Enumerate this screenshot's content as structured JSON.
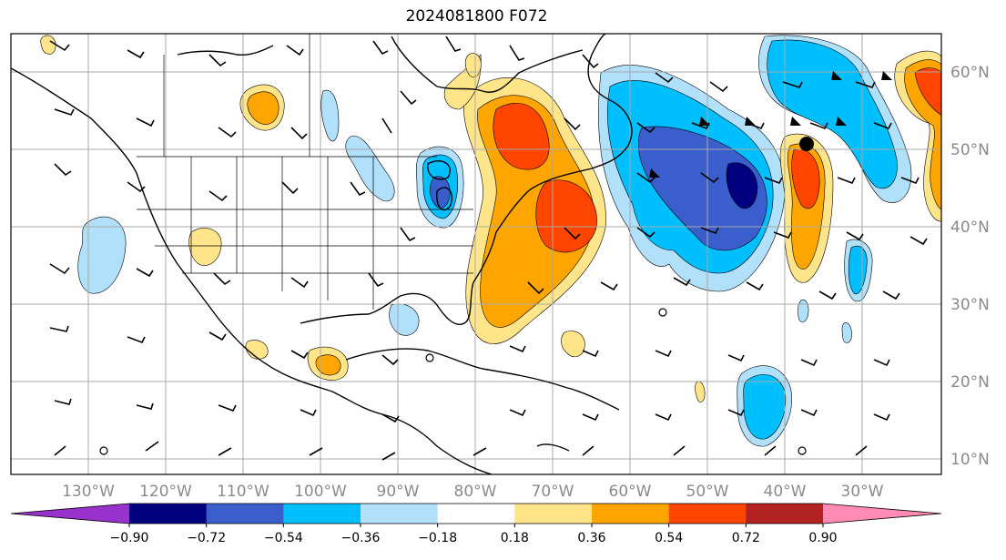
{
  "title": "2024081800 F072",
  "latitude_labels": [
    "10°N",
    "20°N",
    "30°N",
    "40°N",
    "50°N",
    "60°N"
  ],
  "longitude_labels": [
    "130°W",
    "120°W",
    "110°W",
    "100°W",
    "90°W",
    "80°W",
    "70°W",
    "60°W",
    "50°W",
    "40°W",
    "30°W"
  ],
  "colorbar": {
    "tick_labels": [
      "−0.90",
      "−0.72",
      "−0.54",
      "−0.36",
      "−0.18",
      "0.18",
      "0.36",
      "0.54",
      "0.72",
      "0.90"
    ],
    "colors": [
      "#9932cc",
      "#000080",
      "#3a5fcd",
      "#00bfff",
      "#b0e0fa",
      "#ffffff",
      "#ffe58a",
      "#ffa500",
      "#ff4500",
      "#b22222",
      "#ff8ab4"
    ]
  }
}
